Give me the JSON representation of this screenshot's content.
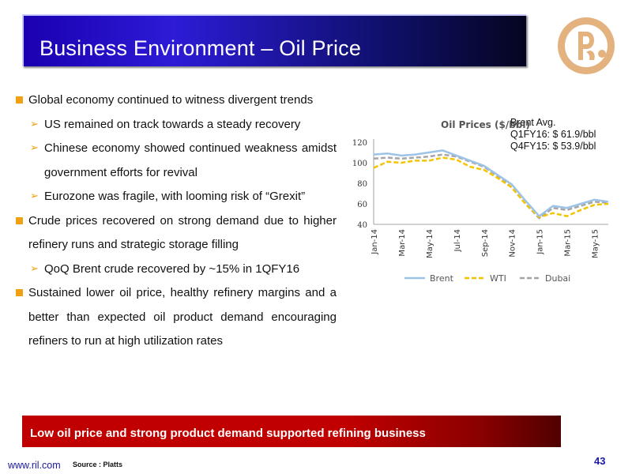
{
  "header": {
    "title": "Business Environment – Oil Price"
  },
  "bullets": [
    {
      "level": 1,
      "text": "Global economy continued to witness divergent trends"
    },
    {
      "level": 2,
      "text": "US remained on track towards a steady recovery"
    },
    {
      "level": 2,
      "text": "Chinese economy showed continued weakness amidst government efforts for revival"
    },
    {
      "level": 2,
      "text": "Eurozone was fragile, with looming risk of “Grexit”"
    },
    {
      "level": 1,
      "text": "Crude prices recovered on strong demand due to higher refinery runs and strategic storage filling"
    },
    {
      "level": 2,
      "text": "QoQ Brent crude recovered by ~15% in 1QFY16"
    },
    {
      "level": 1,
      "text": "Sustained lower oil price, healthy refinery margins and a better than expected oil product demand encouraging refiners to run at high utilization rates"
    }
  ],
  "brent_note": {
    "line1": "Brent Avg.",
    "line2": "Q1FY16: $ 61.9/bbl",
    "line3": "Q4FY15: $ 53.9/bbl"
  },
  "chart_data": {
    "type": "line",
    "title": "Oil Prices ($/bbl)",
    "xlabel": "",
    "ylabel": "",
    "ylim": [
      40,
      120
    ],
    "yticks": [
      40,
      60,
      80,
      100,
      120
    ],
    "categories": [
      "Jan-14",
      "Feb-14",
      "Mar-14",
      "Apr-14",
      "May-14",
      "Jun-14",
      "Jul-14",
      "Aug-14",
      "Sep-14",
      "Oct-14",
      "Nov-14",
      "Dec-14",
      "Jan-15",
      "Feb-15",
      "Mar-15",
      "Apr-15",
      "May-15",
      "Jun-15"
    ],
    "tick_labels": [
      "Jan-14",
      "Mar-14",
      "May-14",
      "Jul-14",
      "Sep-14",
      "Nov-14",
      "Jan-15",
      "Mar-15",
      "May-15"
    ],
    "grid": false,
    "legend": "bottom",
    "series": [
      {
        "name": "Brent",
        "color": "#9dc3e6",
        "dash": "solid",
        "values": [
          108,
          109,
          107,
          108,
          110,
          112,
          107,
          102,
          97,
          88,
          79,
          63,
          48,
          58,
          56,
          60,
          64,
          62
        ]
      },
      {
        "name": "WTI",
        "color": "#f5c400",
        "dash": "dashed",
        "values": [
          95,
          101,
          100,
          102,
          102,
          105,
          103,
          96,
          93,
          85,
          76,
          60,
          47,
          51,
          48,
          54,
          59,
          60
        ]
      },
      {
        "name": "Dubai",
        "color": "#a6a6a6",
        "dash": "dashed",
        "values": [
          104,
          105,
          104,
          105,
          106,
          108,
          106,
          101,
          96,
          87,
          76,
          60,
          46,
          56,
          54,
          58,
          62,
          61
        ]
      }
    ]
  },
  "banner": {
    "text": "Low oil price and strong product demand supported refining business"
  },
  "footer": {
    "url": "www.ril.com",
    "source": "Source : Platts",
    "page": "43"
  },
  "colors": {
    "title_bar": "#2d1bd6",
    "banner": "#c00000",
    "bullet": "#f0a010",
    "logo": "#e0b07a"
  }
}
